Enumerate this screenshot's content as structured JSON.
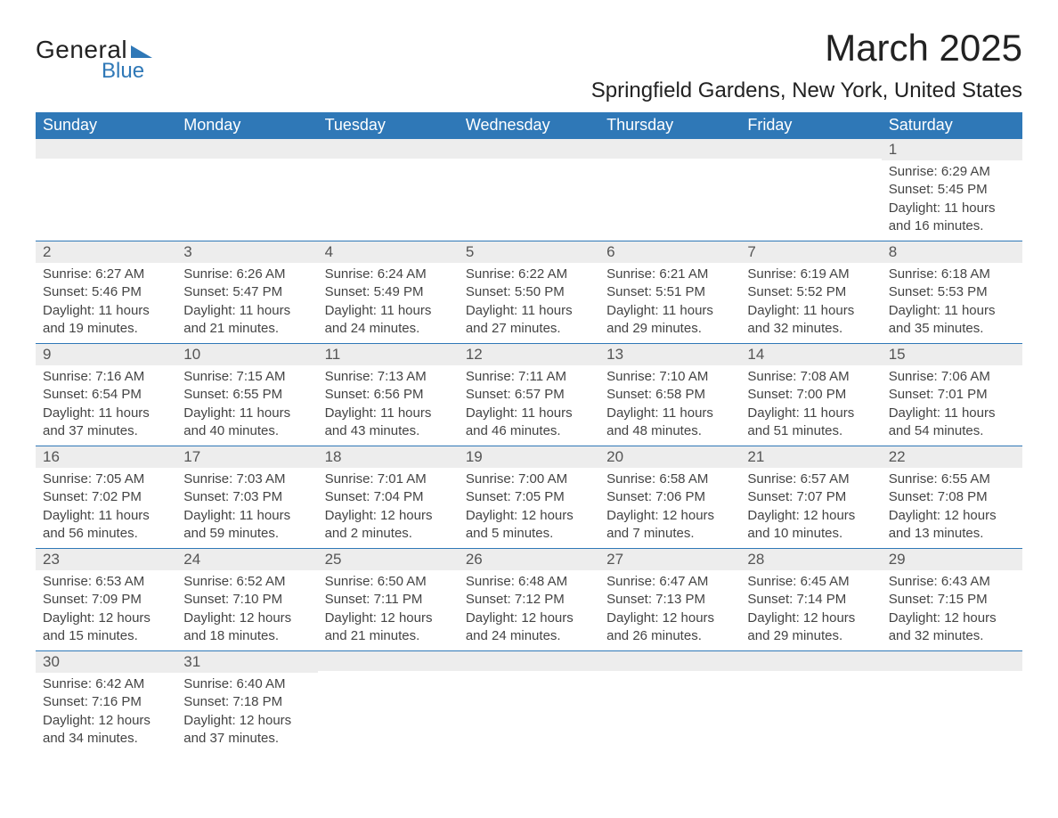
{
  "brand": {
    "general": "General",
    "blue": "Blue"
  },
  "title": "March 2025",
  "subtitle": "Springfield Gardens, New York, United States",
  "colors": {
    "header_bg": "#2f78b7",
    "header_text": "#ffffff",
    "daynum_bg": "#ededed",
    "row_border": "#2f78b7",
    "page_bg": "#ffffff",
    "text": "#333333"
  },
  "weekdays": [
    "Sunday",
    "Monday",
    "Tuesday",
    "Wednesday",
    "Thursday",
    "Friday",
    "Saturday"
  ],
  "weeks": [
    [
      null,
      null,
      null,
      null,
      null,
      null,
      {
        "n": "1",
        "sr": "Sunrise: 6:29 AM",
        "ss": "Sunset: 5:45 PM",
        "d1": "Daylight: 11 hours",
        "d2": "and 16 minutes."
      }
    ],
    [
      {
        "n": "2",
        "sr": "Sunrise: 6:27 AM",
        "ss": "Sunset: 5:46 PM",
        "d1": "Daylight: 11 hours",
        "d2": "and 19 minutes."
      },
      {
        "n": "3",
        "sr": "Sunrise: 6:26 AM",
        "ss": "Sunset: 5:47 PM",
        "d1": "Daylight: 11 hours",
        "d2": "and 21 minutes."
      },
      {
        "n": "4",
        "sr": "Sunrise: 6:24 AM",
        "ss": "Sunset: 5:49 PM",
        "d1": "Daylight: 11 hours",
        "d2": "and 24 minutes."
      },
      {
        "n": "5",
        "sr": "Sunrise: 6:22 AM",
        "ss": "Sunset: 5:50 PM",
        "d1": "Daylight: 11 hours",
        "d2": "and 27 minutes."
      },
      {
        "n": "6",
        "sr": "Sunrise: 6:21 AM",
        "ss": "Sunset: 5:51 PM",
        "d1": "Daylight: 11 hours",
        "d2": "and 29 minutes."
      },
      {
        "n": "7",
        "sr": "Sunrise: 6:19 AM",
        "ss": "Sunset: 5:52 PM",
        "d1": "Daylight: 11 hours",
        "d2": "and 32 minutes."
      },
      {
        "n": "8",
        "sr": "Sunrise: 6:18 AM",
        "ss": "Sunset: 5:53 PM",
        "d1": "Daylight: 11 hours",
        "d2": "and 35 minutes."
      }
    ],
    [
      {
        "n": "9",
        "sr": "Sunrise: 7:16 AM",
        "ss": "Sunset: 6:54 PM",
        "d1": "Daylight: 11 hours",
        "d2": "and 37 minutes."
      },
      {
        "n": "10",
        "sr": "Sunrise: 7:15 AM",
        "ss": "Sunset: 6:55 PM",
        "d1": "Daylight: 11 hours",
        "d2": "and 40 minutes."
      },
      {
        "n": "11",
        "sr": "Sunrise: 7:13 AM",
        "ss": "Sunset: 6:56 PM",
        "d1": "Daylight: 11 hours",
        "d2": "and 43 minutes."
      },
      {
        "n": "12",
        "sr": "Sunrise: 7:11 AM",
        "ss": "Sunset: 6:57 PM",
        "d1": "Daylight: 11 hours",
        "d2": "and 46 minutes."
      },
      {
        "n": "13",
        "sr": "Sunrise: 7:10 AM",
        "ss": "Sunset: 6:58 PM",
        "d1": "Daylight: 11 hours",
        "d2": "and 48 minutes."
      },
      {
        "n": "14",
        "sr": "Sunrise: 7:08 AM",
        "ss": "Sunset: 7:00 PM",
        "d1": "Daylight: 11 hours",
        "d2": "and 51 minutes."
      },
      {
        "n": "15",
        "sr": "Sunrise: 7:06 AM",
        "ss": "Sunset: 7:01 PM",
        "d1": "Daylight: 11 hours",
        "d2": "and 54 minutes."
      }
    ],
    [
      {
        "n": "16",
        "sr": "Sunrise: 7:05 AM",
        "ss": "Sunset: 7:02 PM",
        "d1": "Daylight: 11 hours",
        "d2": "and 56 minutes."
      },
      {
        "n": "17",
        "sr": "Sunrise: 7:03 AM",
        "ss": "Sunset: 7:03 PM",
        "d1": "Daylight: 11 hours",
        "d2": "and 59 minutes."
      },
      {
        "n": "18",
        "sr": "Sunrise: 7:01 AM",
        "ss": "Sunset: 7:04 PM",
        "d1": "Daylight: 12 hours",
        "d2": "and 2 minutes."
      },
      {
        "n": "19",
        "sr": "Sunrise: 7:00 AM",
        "ss": "Sunset: 7:05 PM",
        "d1": "Daylight: 12 hours",
        "d2": "and 5 minutes."
      },
      {
        "n": "20",
        "sr": "Sunrise: 6:58 AM",
        "ss": "Sunset: 7:06 PM",
        "d1": "Daylight: 12 hours",
        "d2": "and 7 minutes."
      },
      {
        "n": "21",
        "sr": "Sunrise: 6:57 AM",
        "ss": "Sunset: 7:07 PM",
        "d1": "Daylight: 12 hours",
        "d2": "and 10 minutes."
      },
      {
        "n": "22",
        "sr": "Sunrise: 6:55 AM",
        "ss": "Sunset: 7:08 PM",
        "d1": "Daylight: 12 hours",
        "d2": "and 13 minutes."
      }
    ],
    [
      {
        "n": "23",
        "sr": "Sunrise: 6:53 AM",
        "ss": "Sunset: 7:09 PM",
        "d1": "Daylight: 12 hours",
        "d2": "and 15 minutes."
      },
      {
        "n": "24",
        "sr": "Sunrise: 6:52 AM",
        "ss": "Sunset: 7:10 PM",
        "d1": "Daylight: 12 hours",
        "d2": "and 18 minutes."
      },
      {
        "n": "25",
        "sr": "Sunrise: 6:50 AM",
        "ss": "Sunset: 7:11 PM",
        "d1": "Daylight: 12 hours",
        "d2": "and 21 minutes."
      },
      {
        "n": "26",
        "sr": "Sunrise: 6:48 AM",
        "ss": "Sunset: 7:12 PM",
        "d1": "Daylight: 12 hours",
        "d2": "and 24 minutes."
      },
      {
        "n": "27",
        "sr": "Sunrise: 6:47 AM",
        "ss": "Sunset: 7:13 PM",
        "d1": "Daylight: 12 hours",
        "d2": "and 26 minutes."
      },
      {
        "n": "28",
        "sr": "Sunrise: 6:45 AM",
        "ss": "Sunset: 7:14 PM",
        "d1": "Daylight: 12 hours",
        "d2": "and 29 minutes."
      },
      {
        "n": "29",
        "sr": "Sunrise: 6:43 AM",
        "ss": "Sunset: 7:15 PM",
        "d1": "Daylight: 12 hours",
        "d2": "and 32 minutes."
      }
    ],
    [
      {
        "n": "30",
        "sr": "Sunrise: 6:42 AM",
        "ss": "Sunset: 7:16 PM",
        "d1": "Daylight: 12 hours",
        "d2": "and 34 minutes."
      },
      {
        "n": "31",
        "sr": "Sunrise: 6:40 AM",
        "ss": "Sunset: 7:18 PM",
        "d1": "Daylight: 12 hours",
        "d2": "and 37 minutes."
      },
      null,
      null,
      null,
      null,
      null
    ]
  ]
}
